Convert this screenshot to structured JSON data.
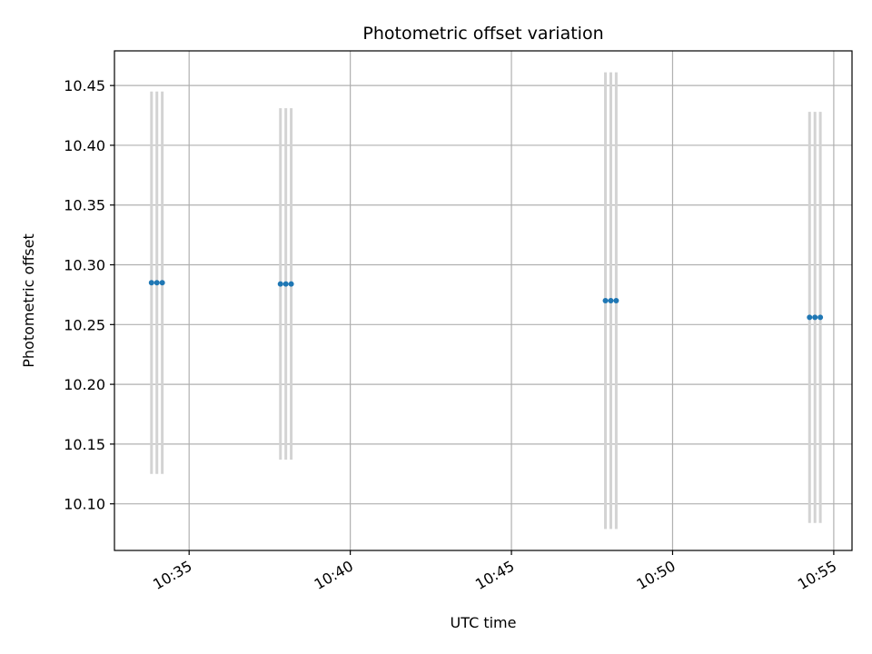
{
  "chart_data": {
    "type": "scatter",
    "title": "Photometric offset variation",
    "xlabel": "UTC time",
    "ylabel": "Photometric offset",
    "grid": true,
    "xlim": [
      "10:32:41",
      "10:55:34"
    ],
    "ylim": [
      10.061,
      10.479
    ],
    "x_ticks": [
      "10:35",
      "10:40",
      "10:45",
      "10:50",
      "10:55"
    ],
    "y_ticks": [
      "10.10",
      "10.15",
      "10.20",
      "10.25",
      "10.30",
      "10.35",
      "10.40",
      "10.45"
    ],
    "colors": {
      "points": "#1f77b4",
      "errorbars": "#d3d3d3",
      "grid": "#b0b0b0"
    },
    "series": [
      {
        "points": [
          {
            "x": "10:33:50",
            "y": 10.285,
            "yerr": 0.16
          },
          {
            "x": "10:34:00",
            "y": 10.285,
            "yerr": 0.16
          },
          {
            "x": "10:34:10",
            "y": 10.285,
            "yerr": 0.16
          },
          {
            "x": "10:37:50",
            "y": 10.284,
            "yerr": 0.147
          },
          {
            "x": "10:38:00",
            "y": 10.284,
            "yerr": 0.147
          },
          {
            "x": "10:38:10",
            "y": 10.284,
            "yerr": 0.147
          },
          {
            "x": "10:47:55",
            "y": 10.27,
            "yerr": 0.191
          },
          {
            "x": "10:48:05",
            "y": 10.27,
            "yerr": 0.191
          },
          {
            "x": "10:48:15",
            "y": 10.27,
            "yerr": 0.191
          },
          {
            "x": "10:54:15",
            "y": 10.256,
            "yerr": 0.172
          },
          {
            "x": "10:54:25",
            "y": 10.256,
            "yerr": 0.172
          },
          {
            "x": "10:54:35",
            "y": 10.256,
            "yerr": 0.172
          }
        ]
      }
    ]
  }
}
